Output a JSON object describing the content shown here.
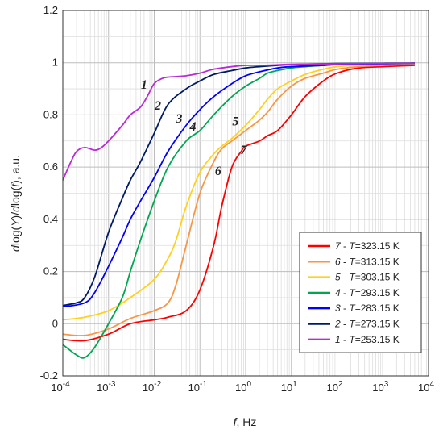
{
  "chart_data": {
    "type": "line",
    "title": "",
    "xlabel_parts": {
      "pre": "",
      "f": "f",
      "post": ", Hz"
    },
    "ylabel_parts": {
      "d1": "d",
      "log1": "log(",
      "Y": "Y",
      "close1": ")/",
      "d2": "d",
      "log2": "log(",
      "t": "t",
      "close2": "), a.u."
    },
    "x_scale": "log",
    "xlim": [
      0.0001,
      10000
    ],
    "ylim": [
      -0.2,
      1.2
    ],
    "x_ticks": [
      {
        "base": "10",
        "exp": "-4"
      },
      {
        "base": "10",
        "exp": "-3"
      },
      {
        "base": "10",
        "exp": "-2"
      },
      {
        "base": "10",
        "exp": "-1"
      },
      {
        "base": "10",
        "exp": "0"
      },
      {
        "base": "10",
        "exp": "1"
      },
      {
        "base": "10",
        "exp": "2"
      },
      {
        "base": "10",
        "exp": "3"
      },
      {
        "base": "10",
        "exp": "4"
      }
    ],
    "y_ticks": [
      "-0.2",
      "0",
      "0.2",
      "0.4",
      "0.6",
      "0.8",
      "1",
      "1.2"
    ],
    "y_tick_values": [
      -0.2,
      0,
      0.2,
      0.4,
      0.6,
      0.8,
      1.0,
      1.2
    ],
    "grid": true,
    "legend_position": "bottom-right",
    "series": [
      {
        "name": "7 - T=323.15 K",
        "num": "7",
        "sep": " - ",
        "T": "T",
        "val": "=323.15 K",
        "color": "#ff0000",
        "label_at": [
          0.9,
          0.65
        ],
        "x": [
          0.0001,
          0.0003,
          0.001,
          0.003,
          0.01,
          0.02,
          0.05,
          0.1,
          0.2,
          0.3,
          0.5,
          0.8,
          1,
          2,
          3,
          5,
          10,
          20,
          50,
          100,
          300,
          1000,
          5000
        ],
        "y": [
          -0.06,
          -0.065,
          -0.04,
          0.0,
          0.015,
          0.025,
          0.05,
          0.13,
          0.3,
          0.45,
          0.6,
          0.66,
          0.68,
          0.7,
          0.72,
          0.74,
          0.8,
          0.87,
          0.93,
          0.96,
          0.98,
          0.985,
          0.99
        ]
      },
      {
        "name": "6 - T=313.15 K",
        "num": "6",
        "sep": " - ",
        "T": "T",
        "val": "=313.15 K",
        "color": "#f79646",
        "label_at": [
          0.25,
          0.57
        ],
        "x": [
          0.0001,
          0.0003,
          0.001,
          0.003,
          0.01,
          0.02,
          0.03,
          0.05,
          0.1,
          0.2,
          0.3,
          0.5,
          1,
          2,
          3,
          5,
          10,
          20,
          50,
          100,
          300,
          1000,
          5000
        ],
        "y": [
          -0.04,
          -0.045,
          -0.02,
          0.02,
          0.05,
          0.08,
          0.15,
          0.3,
          0.5,
          0.62,
          0.67,
          0.7,
          0.74,
          0.78,
          0.81,
          0.86,
          0.91,
          0.94,
          0.96,
          0.975,
          0.985,
          0.99,
          0.995
        ]
      },
      {
        "name": "5 - T=303.15 K",
        "num": "5",
        "sep": " - ",
        "T": "T",
        "val": "=303.15 K",
        "color": "#ffd11a",
        "label_at": [
          0.6,
          0.76
        ],
        "x": [
          0.0001,
          0.0003,
          0.001,
          0.003,
          0.01,
          0.02,
          0.03,
          0.05,
          0.1,
          0.2,
          0.3,
          0.5,
          1,
          2,
          3,
          5,
          10,
          20,
          50,
          100,
          300,
          1000,
          5000
        ],
        "y": [
          0.015,
          0.025,
          0.05,
          0.1,
          0.17,
          0.25,
          0.32,
          0.45,
          0.58,
          0.65,
          0.68,
          0.71,
          0.76,
          0.82,
          0.86,
          0.9,
          0.93,
          0.955,
          0.975,
          0.985,
          0.99,
          0.995,
          0.997
        ]
      },
      {
        "name": "4 - T=293.15 K",
        "num": "4",
        "sep": " - ",
        "T": "T",
        "val": "=293.15 K",
        "color": "#00a651",
        "label_at": [
          0.07,
          0.74
        ],
        "x": [
          0.0001,
          0.0002,
          0.0003,
          0.0005,
          0.001,
          0.002,
          0.003,
          0.005,
          0.01,
          0.02,
          0.05,
          0.1,
          0.2,
          0.5,
          1,
          2,
          3,
          5,
          10,
          20,
          50,
          100,
          1000,
          5000
        ],
        "y": [
          -0.08,
          -0.12,
          -0.13,
          -0.09,
          0.0,
          0.1,
          0.2,
          0.32,
          0.47,
          0.6,
          0.7,
          0.74,
          0.8,
          0.87,
          0.91,
          0.94,
          0.96,
          0.97,
          0.98,
          0.985,
          0.99,
          0.993,
          0.997,
          0.998
        ]
      },
      {
        "name": "3 - T=283.15 K",
        "num": "3",
        "sep": " - ",
        "T": "T",
        "val": "=283.15 K",
        "color": "#0000ff",
        "label_at": [
          0.035,
          0.77
        ],
        "x": [
          0.0001,
          0.0003,
          0.0005,
          0.001,
          0.002,
          0.003,
          0.005,
          0.01,
          0.02,
          0.05,
          0.1,
          0.2,
          0.5,
          1,
          2,
          5,
          10,
          50,
          100,
          1000,
          5000
        ],
        "y": [
          0.065,
          0.08,
          0.12,
          0.22,
          0.33,
          0.4,
          0.47,
          0.56,
          0.66,
          0.76,
          0.82,
          0.87,
          0.92,
          0.95,
          0.965,
          0.98,
          0.985,
          0.99,
          0.993,
          0.996,
          0.998
        ]
      },
      {
        "name": "2 - T=273.15 K",
        "num": "2",
        "sep": " - ",
        "T": "T",
        "val": "=273.15 K",
        "color": "#001a66",
        "label_at": [
          0.012,
          0.82
        ],
        "x": [
          0.0001,
          0.0002,
          0.0003,
          0.0005,
          0.001,
          0.002,
          0.003,
          0.005,
          0.01,
          0.02,
          0.05,
          0.1,
          0.2,
          0.5,
          1,
          2,
          5,
          10,
          50,
          100,
          1000,
          5000
        ],
        "y": [
          0.07,
          0.08,
          0.1,
          0.18,
          0.35,
          0.48,
          0.55,
          0.62,
          0.73,
          0.84,
          0.9,
          0.93,
          0.955,
          0.97,
          0.98,
          0.985,
          0.99,
          0.993,
          0.996,
          0.997,
          0.998,
          0.999
        ]
      },
      {
        "name": "1 - T=253.15 K",
        "num": "1",
        "sep": " - ",
        "T": "T",
        "val": "=253.15 K",
        "color": "#b82bd6",
        "label_at": [
          0.006,
          0.9
        ],
        "x": [
          0.0001,
          0.00015,
          0.0002,
          0.0003,
          0.0005,
          0.0007,
          0.001,
          0.002,
          0.003,
          0.005,
          0.007,
          0.01,
          0.015,
          0.02,
          0.03,
          0.05,
          0.1,
          0.2,
          0.5,
          1,
          2,
          5,
          10,
          100,
          1000,
          5000
        ],
        "y": [
          0.55,
          0.62,
          0.66,
          0.675,
          0.665,
          0.675,
          0.7,
          0.76,
          0.8,
          0.83,
          0.87,
          0.92,
          0.94,
          0.945,
          0.947,
          0.95,
          0.96,
          0.975,
          0.985,
          0.99,
          0.99,
          0.992,
          0.994,
          0.996,
          0.997,
          0.998
        ]
      }
    ]
  }
}
